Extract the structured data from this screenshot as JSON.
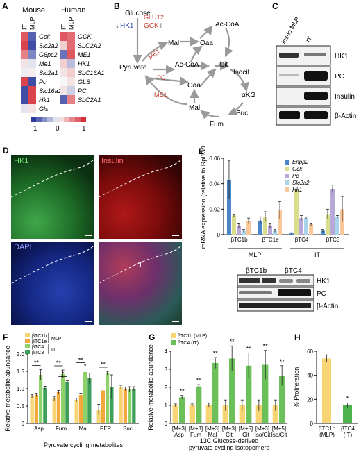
{
  "panels": {
    "A": {
      "letter": "A",
      "mouse_title": "Mouse",
      "human_title": "Human",
      "col_labels": [
        "IT",
        "MLP"
      ],
      "mouse_genes": [
        "Gck",
        "Slc2a2",
        "G6pc2",
        "Me1",
        "Slc2a1",
        "Pc",
        "Slc16a1",
        "Hk1",
        "Gls"
      ],
      "human_genes": [
        "GCK",
        "SLC2A2",
        "ME1",
        "HK1",
        "SLC16A1",
        "GLS",
        "PC",
        "SLC2A1"
      ],
      "mouse_matrix": [
        [
          0.8,
          -0.8
        ],
        [
          0.9,
          -0.9
        ],
        [
          0.6,
          -0.6
        ],
        [
          0.1,
          -0.1
        ],
        [
          -0.05,
          0.05
        ],
        [
          0.9,
          -0.9
        ],
        [
          -0.9,
          0.9
        ],
        [
          -0.9,
          0.9
        ],
        [
          -0.1,
          0.1
        ]
      ],
      "human_matrix": [
        [
          0.8,
          0.7
        ],
        [
          0.2,
          0.7
        ],
        [
          -0.7,
          0.8
        ],
        [
          0.2,
          -0.3
        ],
        [
          0.1,
          0.2
        ],
        [
          0.0,
          0.1
        ],
        [
          0.1,
          -0.2
        ],
        [
          -0.8,
          0.6
        ]
      ],
      "colorbar_ticks": [
        "−1",
        "0",
        "1"
      ],
      "colors": {
        "neg": "#2b3a9e",
        "pos": "#d7303a",
        "mid": "#f7f7f7"
      }
    },
    "B": {
      "letter": "B",
      "nodes": {
        "glucose": "Glucose",
        "hk1": "HK1",
        "gck": "GCK",
        "glut2": "GLUT2",
        "me1_a": "ME1",
        "me1_b": "ME1",
        "pc": "PC",
        "mal_top": "Mal",
        "oaa_top": "Oaa",
        "acoa_top": "Ac-CoA",
        "acoa_mid": "Ac-CoA",
        "pyruvate": "Pyruvate",
        "cit": "Cit",
        "isocit": "Isocit",
        "oaa_mid": "Oaa",
        "akg": "αKG",
        "mal_bot": "Mal",
        "suc": "Suc",
        "fum": "Fum"
      },
      "arrows": {
        "down": "↓",
        "up": "↑"
      }
    },
    "C": {
      "letter": "C",
      "lanes": [
        "Ins-lo MLP",
        "IT"
      ],
      "rows": [
        "HK1",
        "PC",
        "Insulin",
        "β-Actin"
      ]
    },
    "D": {
      "letter": "D",
      "labels": [
        "HK1",
        "Insulin",
        "DAPI",
        "IT"
      ]
    },
    "E": {
      "letter": "E",
      "blot_lanes": [
        "βTC1b",
        "βTC4"
      ],
      "blot_rows": [
        "HK1",
        "PC",
        "β-Actin"
      ]
    },
    "F": {
      "letter": "F"
    },
    "G": {
      "letter": "G"
    },
    "H": {
      "letter": "H"
    }
  },
  "chart_data": [
    {
      "id": "E",
      "type": "bar",
      "ylabel": "mRNA expression (relative to Rpl130)",
      "ylim": [
        0,
        0.06
      ],
      "yticks": [
        "0",
        "0.02",
        "0.04",
        "0.06"
      ],
      "categories": [
        "βTC1b",
        "βTC1e",
        "βTC4",
        "βTC3"
      ],
      "groups": [
        {
          "label": "MLP",
          "from": 0,
          "to": 1
        },
        {
          "label": "IT",
          "from": 2,
          "to": 3
        }
      ],
      "legend_position": "top-right",
      "series": [
        {
          "name": "Enpp2",
          "color": "#4a86c8",
          "values": [
            0.043,
            0.011,
            0.001,
            0.003
          ],
          "errors": [
            0.015,
            0.003,
            0.0005,
            0.001
          ]
        },
        {
          "name": "Gck",
          "color": "#d8de8c",
          "values": [
            0.015,
            0.014,
            0.035,
            0.016
          ],
          "errors": [
            0.001,
            0.004,
            0.0005,
            0.004
          ]
        },
        {
          "name": "Pc",
          "color": "#b8a8d8",
          "values": [
            0.007,
            0.007,
            0.013,
            0.036
          ],
          "errors": [
            0.002,
            0.002,
            0.002,
            0.003
          ]
        },
        {
          "name": "Slc2a2",
          "color": "#a8d4ec",
          "values": [
            0.003,
            0.003,
            0.013,
            0.014
          ],
          "errors": [
            0.001,
            0.001,
            0.001,
            0.001
          ]
        },
        {
          "name": "Hk1",
          "color": "#f8c89a",
          "values": [
            0.011,
            0.019,
            0.008,
            0.02
          ],
          "errors": [
            0.002,
            0.007,
            0.001,
            0.01
          ]
        }
      ]
    },
    {
      "id": "F",
      "type": "bar",
      "ylabel": "Relative metabolite abundance",
      "xlabel": "Pyruvate cycling metabolites",
      "ylim": [
        0,
        2.0
      ],
      "yticks": [
        "0",
        "0.5",
        "1.0",
        "1.5",
        "2.0"
      ],
      "categories": [
        "Asp",
        "Fum",
        "Mal",
        "PEP",
        "Suc"
      ],
      "legend_position": "top-left",
      "legend_groups": [
        {
          "label": "MLP",
          "series": [
            0,
            1
          ]
        },
        {
          "label": "IT",
          "series": [
            2,
            3
          ]
        }
      ],
      "series": [
        {
          "name": "βTC1b",
          "color": "#f7d575",
          "values": [
            0.78,
            0.72,
            0.68,
            0.4,
            1.05
          ],
          "errors": [
            0.05,
            0.06,
            0.05,
            0.15,
            0.05
          ]
        },
        {
          "name": "βTC1e",
          "color": "#f2a83a",
          "values": [
            0.82,
            0.9,
            0.82,
            0.95,
            1.0
          ],
          "errors": [
            0.05,
            0.05,
            0.05,
            0.3,
            0.05
          ]
        },
        {
          "name": "βTC4",
          "color": "#8fd26a",
          "values": [
            1.4,
            1.42,
            1.48,
            1.45,
            0.98
          ],
          "errors": [
            0.15,
            0.12,
            0.15,
            0.05,
            0.08
          ]
        },
        {
          "name": "βTC3",
          "color": "#3e9f5a",
          "values": [
            1.02,
            1.18,
            1.3,
            1.05,
            1.0
          ],
          "errors": [
            0.05,
            0.05,
            0.15,
            0.35,
            0.06
          ]
        }
      ],
      "significance": [
        {
          "category": 0,
          "from": 0,
          "to": 2,
          "label": "**"
        },
        {
          "category": 1,
          "from": 0,
          "to": 2,
          "label": "**"
        },
        {
          "category": 1,
          "from": 1,
          "to": 3,
          "label": "*"
        },
        {
          "category": 2,
          "from": 0,
          "to": 2,
          "label": "**"
        },
        {
          "category": 2,
          "from": 1,
          "to": 3,
          "label": "*"
        },
        {
          "category": 3,
          "from": 0,
          "to": 2,
          "label": "**"
        }
      ]
    },
    {
      "id": "G",
      "type": "bar",
      "ylabel": "Relative metabolite abundance",
      "xlabel_lines": [
        "13C Glucose-derived",
        "pyruvate cycling isotopomers"
      ],
      "ylim": [
        0,
        4
      ],
      "yticks": [
        "0",
        "1",
        "2",
        "3",
        "4"
      ],
      "categories": [
        "[M+3]\nAsp",
        "[M+3]\nFum",
        "[M+3]\nMal",
        "[M+3]\nCit",
        "[M+5]\nCit",
        "[M+3]\nIso/Cit",
        "[M+5]\nIso/Cit"
      ],
      "legend_position": "top-left",
      "series": [
        {
          "name": "βTC1b (MLP)",
          "color": "#f7d575",
          "values": [
            1,
            1,
            1,
            1,
            1,
            1,
            1
          ],
          "errors": [
            0.08,
            0.08,
            0.12,
            0.3,
            0.3,
            0.3,
            0.3
          ]
        },
        {
          "name": "βTC4 (IT)",
          "color": "#6cc05a",
          "values": [
            1.45,
            2.05,
            3.35,
            3.6,
            3.2,
            3.25,
            2.65
          ],
          "errors": [
            0.1,
            0.1,
            0.3,
            0.7,
            0.7,
            0.8,
            0.55
          ]
        }
      ],
      "significance_labels": [
        "**",
        "**",
        "**",
        "**",
        "**",
        "**",
        "**"
      ]
    },
    {
      "id": "H",
      "type": "bar",
      "ylabel": "% Proliferation",
      "ylim": [
        0,
        60
      ],
      "yticks": [
        "0",
        "20",
        "40",
        "60"
      ],
      "categories": [
        "βTC1b\n(MLP)",
        "βTC4\n(IT)"
      ],
      "values": [
        54,
        15
      ],
      "errors": [
        3,
        2
      ],
      "colors": [
        "#f7d575",
        "#4cb34c"
      ],
      "significance": [
        "",
        "*"
      ]
    }
  ]
}
